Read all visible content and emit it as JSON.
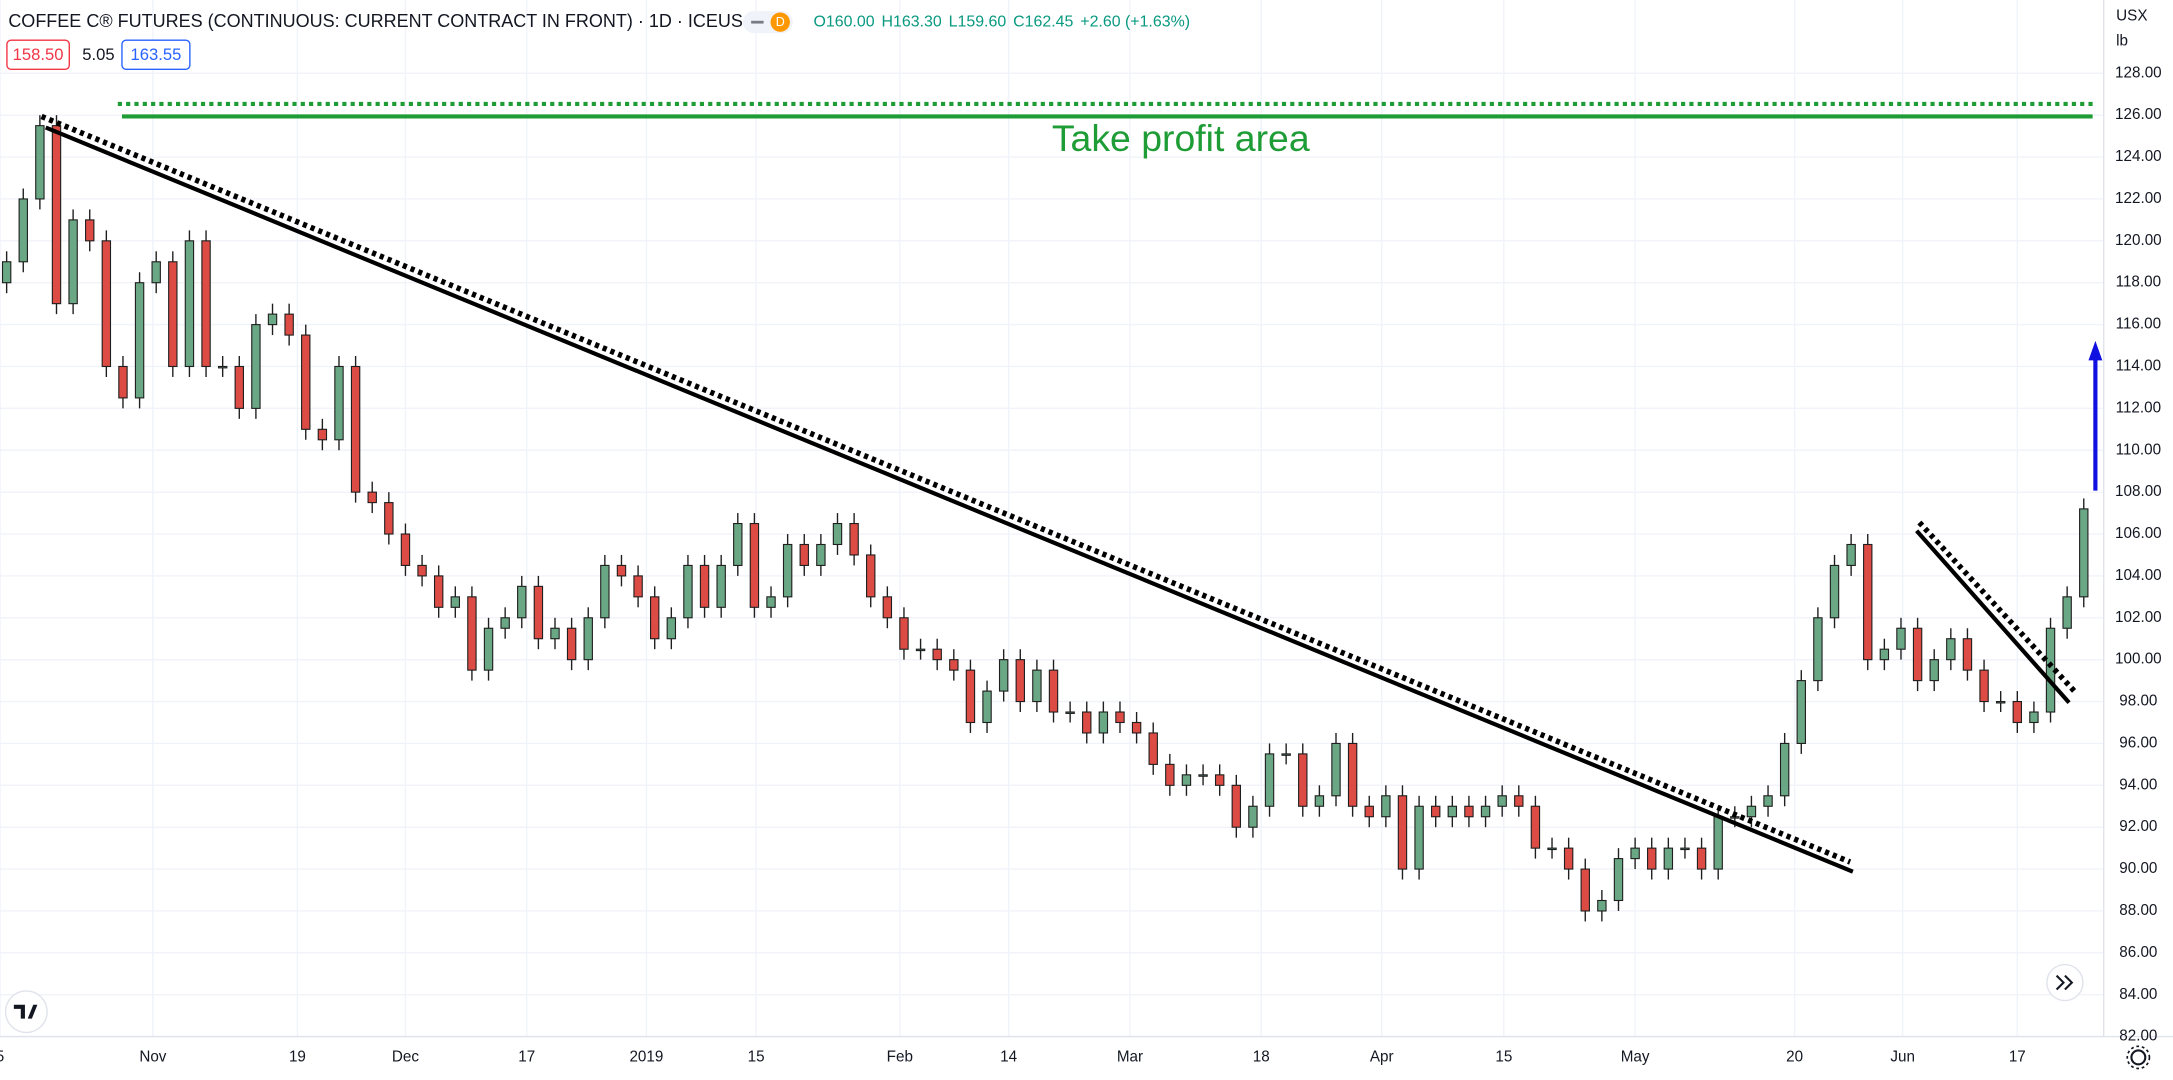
{
  "chart_data": {
    "type": "candlestick",
    "title": "COFFEE C® FUTURES (CONTINUOUS: CURRENT CONTRACT IN FRONT) · 1D · ICEUS",
    "interval_badge": "D",
    "legend_values": [
      "O160.00",
      "H163.30",
      "L159.60",
      "C162.45",
      "+2.60 (+1.63%)"
    ],
    "price_boxes": [
      "158.50",
      "5.05",
      "163.55"
    ],
    "currency": "USX",
    "unit": "lb",
    "annotation": "Take profit area",
    "up_color": "#6aa784",
    "down_color": "#dc4c45",
    "grid": true,
    "open": [
      118,
      119,
      122,
      125.5,
      117,
      121,
      120,
      114,
      112.5,
      118,
      119,
      114,
      120,
      114,
      114,
      112,
      116,
      116.5,
      115.5,
      111,
      110.5,
      114,
      108,
      107.5,
      106,
      104.5,
      104,
      102.5,
      103,
      99.5,
      101.5,
      102,
      103.5,
      101,
      101.5,
      100,
      102,
      104.5,
      104,
      103,
      101,
      102,
      104.5,
      102.5,
      104.5,
      106.5,
      102.5,
      103,
      105.5,
      104.5,
      105.5,
      106.5,
      105,
      103,
      102,
      100.5,
      100.5,
      100,
      99.5,
      97,
      98.5,
      100,
      98,
      99.5,
      97.5,
      97.5,
      96.5,
      97.5,
      97,
      96.5,
      95,
      94,
      94.5,
      94.5,
      94,
      92,
      93,
      95.5,
      95.5,
      93,
      93.5,
      96,
      93,
      92.5,
      93.5,
      90,
      93,
      92.5,
      93,
      92.5,
      93,
      93.5,
      93,
      91,
      91,
      90,
      88,
      88.5,
      90.5,
      91,
      90,
      91,
      91,
      90,
      92.5,
      92.5,
      93,
      93.5,
      96,
      99,
      102,
      104.5,
      105.5,
      100,
      100.5,
      101.5,
      99,
      100,
      101,
      99.5,
      98,
      98,
      97,
      97.5,
      101.5,
      103
    ],
    "high": [
      119.5,
      122.5,
      126,
      126,
      121.5,
      121.5,
      120.5,
      114.5,
      118.5,
      119.5,
      119.5,
      120.5,
      120.5,
      114.5,
      114.5,
      116.5,
      117,
      117,
      116,
      111.5,
      114.5,
      114.5,
      108.5,
      108,
      106.5,
      105,
      104.5,
      103.5,
      103.5,
      102,
      102.5,
      104,
      104,
      102,
      102,
      102.5,
      105,
      105,
      104.5,
      103.5,
      102.5,
      105,
      105,
      105,
      107,
      107,
      103.5,
      106,
      106,
      106,
      107,
      107,
      105.5,
      103.5,
      102.5,
      101,
      101,
      100.5,
      100,
      99,
      100.5,
      100.5,
      100,
      100,
      98,
      98,
      98,
      98,
      97.5,
      97,
      95.5,
      95,
      95,
      95,
      94.5,
      93.5,
      96,
      96,
      96,
      94,
      96.5,
      96.5,
      93.5,
      94,
      94,
      93.5,
      93.5,
      93.5,
      93.5,
      93.5,
      94,
      94,
      93.5,
      91.5,
      91.5,
      90.5,
      89,
      91,
      91.5,
      91.5,
      91.5,
      91.5,
      91.5,
      93,
      93,
      93.5,
      94,
      96.5,
      99.5,
      102.5,
      105,
      106,
      106,
      101,
      102,
      102,
      100.5,
      101.5,
      101.5,
      100,
      98.5,
      98.5,
      98,
      102,
      103.5,
      107.7
    ],
    "low": [
      117.5,
      118.5,
      121.5,
      116.5,
      116.5,
      119.5,
      113.5,
      112,
      112,
      117.5,
      113.5,
      113.5,
      113.5,
      113.5,
      111.5,
      111.5,
      115.5,
      115,
      110.5,
      110,
      110,
      107.5,
      107,
      105.5,
      104,
      103.5,
      102,
      102,
      99,
      99,
      101,
      101.5,
      100.5,
      100.5,
      99.5,
      99.5,
      101.5,
      103.5,
      102.5,
      100.5,
      100.5,
      101.5,
      102,
      102,
      104,
      102,
      102,
      102.5,
      104,
      104,
      105,
      104.5,
      102.5,
      101.5,
      100,
      100,
      99.5,
      99,
      96.5,
      96.5,
      98,
      97.5,
      97.5,
      97,
      97,
      96,
      96,
      96.5,
      96,
      94.5,
      93.5,
      93.5,
      94,
      93.5,
      91.5,
      91.5,
      92.5,
      95,
      92.5,
      92.5,
      93,
      92.5,
      92,
      92,
      89.5,
      89.5,
      92,
      92,
      92,
      92,
      92.5,
      92.5,
      90.5,
      90.5,
      89.5,
      87.5,
      87.5,
      88,
      90,
      89.5,
      89.5,
      90.5,
      89.5,
      89.5,
      92,
      92,
      92.5,
      93,
      95.5,
      98.5,
      101.5,
      104,
      99.5,
      99.5,
      100,
      98.5,
      98.5,
      99.5,
      99,
      97.5,
      97.5,
      96.5,
      96.5,
      97,
      101,
      102.5
    ],
    "close": [
      119,
      122,
      125.5,
      117,
      121,
      120,
      114,
      112.5,
      118,
      119,
      114,
      120,
      114,
      114,
      112,
      116,
      116.5,
      115.5,
      111,
      110.5,
      114,
      108,
      107.5,
      106,
      104.5,
      104,
      102.5,
      103,
      99.5,
      101.5,
      102,
      103.5,
      101,
      101.5,
      100,
      102,
      104.5,
      104,
      103,
      101,
      102,
      104.5,
      102.5,
      104.5,
      106.5,
      102.5,
      103,
      105.5,
      104.5,
      105.5,
      106.5,
      105,
      103,
      102,
      100.5,
      100.5,
      100,
      99.5,
      97,
      98.5,
      100,
      98,
      99.5,
      97.5,
      97.5,
      96.5,
      97.5,
      97,
      96.5,
      95,
      94,
      94.5,
      94.5,
      94,
      92,
      93,
      95.5,
      95.5,
      93,
      93.5,
      96,
      93,
      92.5,
      93.5,
      90,
      93,
      92.5,
      93,
      92.5,
      93,
      93.5,
      93,
      91,
      91,
      90,
      88,
      88.5,
      90.5,
      91,
      90,
      91,
      91,
      90,
      92.5,
      92.5,
      93,
      93.5,
      96,
      99,
      102,
      104.5,
      105.5,
      100,
      100.5,
      101.5,
      99,
      100,
      101,
      99.5,
      98,
      98,
      97,
      97.5,
      101.5,
      103,
      107.2
    ],
    "xlim": [
      -0.4,
      126.2
    ],
    "xticks": [
      {
        "value": -0.4,
        "label": "5"
      },
      {
        "value": 8.8,
        "label": "Nov"
      },
      {
        "value": 17.5,
        "label": "19"
      },
      {
        "value": 24,
        "label": "Dec"
      },
      {
        "value": 31.3,
        "label": "17"
      },
      {
        "value": 38.5,
        "label": "2019"
      },
      {
        "value": 45.1,
        "label": "15"
      },
      {
        "value": 53.75,
        "label": "Feb"
      },
      {
        "value": 60.3,
        "label": "14"
      },
      {
        "value": 67.6,
        "label": "Mar"
      },
      {
        "value": 75.5,
        "label": "18"
      },
      {
        "value": 82.75,
        "label": "Apr"
      },
      {
        "value": 90.1,
        "label": "15"
      },
      {
        "value": 98,
        "label": "May"
      },
      {
        "value": 107.6,
        "label": "20"
      },
      {
        "value": 114.1,
        "label": "Jun"
      },
      {
        "value": 121,
        "label": "17"
      }
    ],
    "ylim": [
      82,
      131.5
    ],
    "yticks": [
      {
        "value": 82,
        "label": "82.00"
      },
      {
        "value": 84,
        "label": "84.00"
      },
      {
        "value": 86,
        "label": "86.00"
      },
      {
        "value": 88,
        "label": "88.00"
      },
      {
        "value": 90,
        "label": "90.00"
      },
      {
        "value": 92,
        "label": "92.00"
      },
      {
        "value": 94,
        "label": "94.00"
      },
      {
        "value": 96,
        "label": "96.00"
      },
      {
        "value": 98,
        "label": "98.00"
      },
      {
        "value": 100,
        "label": "100.00"
      },
      {
        "value": 102,
        "label": "102.00"
      },
      {
        "value": 104,
        "label": "104.00"
      },
      {
        "value": 106,
        "label": "106.00"
      },
      {
        "value": 108,
        "label": "108.00"
      },
      {
        "value": 110,
        "label": "110.00"
      },
      {
        "value": 112,
        "label": "112.00"
      },
      {
        "value": 114,
        "label": "114.00"
      },
      {
        "value": 116,
        "label": "116.00"
      },
      {
        "value": 118,
        "label": "118.00"
      },
      {
        "value": 120,
        "label": "120.00"
      },
      {
        "value": 122,
        "label": "122.00"
      },
      {
        "value": 124,
        "label": "124.00"
      },
      {
        "value": 126,
        "label": "126.00"
      },
      {
        "value": 128,
        "label": "128.00"
      }
    ]
  }
}
